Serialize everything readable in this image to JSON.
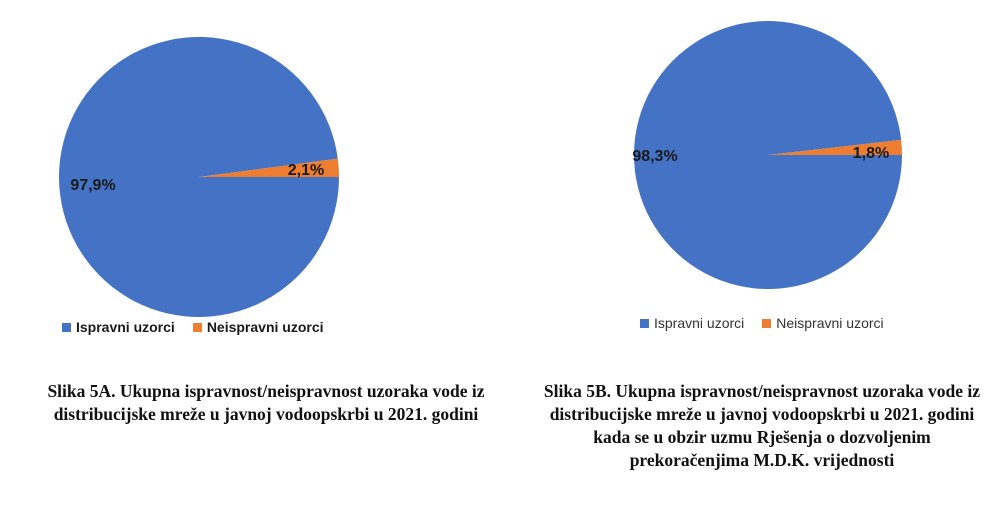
{
  "chart_data": [
    {
      "type": "pie",
      "categories": [
        "Ispravni uzorci",
        "Neispravni uzorci"
      ],
      "values": [
        97.9,
        2.1
      ],
      "data_labels": [
        "97,9%",
        "2,1%"
      ],
      "colors": [
        "#4472C4",
        "#ED7D31"
      ],
      "legend": "bottom",
      "caption": "Slika 5A. Ukupna ispravnost/neispravnost uzoraka vode iz distribucijske mreže u javnoj vodoopskrbi u 2021. godini"
    },
    {
      "type": "pie",
      "categories": [
        "Ispravni uzorci",
        "Neispravni uzorci"
      ],
      "values": [
        98.3,
        1.8
      ],
      "data_labels": [
        "98,3%",
        "1,8%"
      ],
      "colors": [
        "#4472C4",
        "#ED7D31"
      ],
      "legend": "bottom",
      "caption": "Slika 5B. Ukupna ispravnost/neispravnost uzoraka vode iz distribucijske mreže u javnoj vodoopskrbi u 2021. godini kada se u obzir uzmu Rješenja o dozvoljenim prekoračenjima M.D.K. vrijednosti"
    }
  ]
}
